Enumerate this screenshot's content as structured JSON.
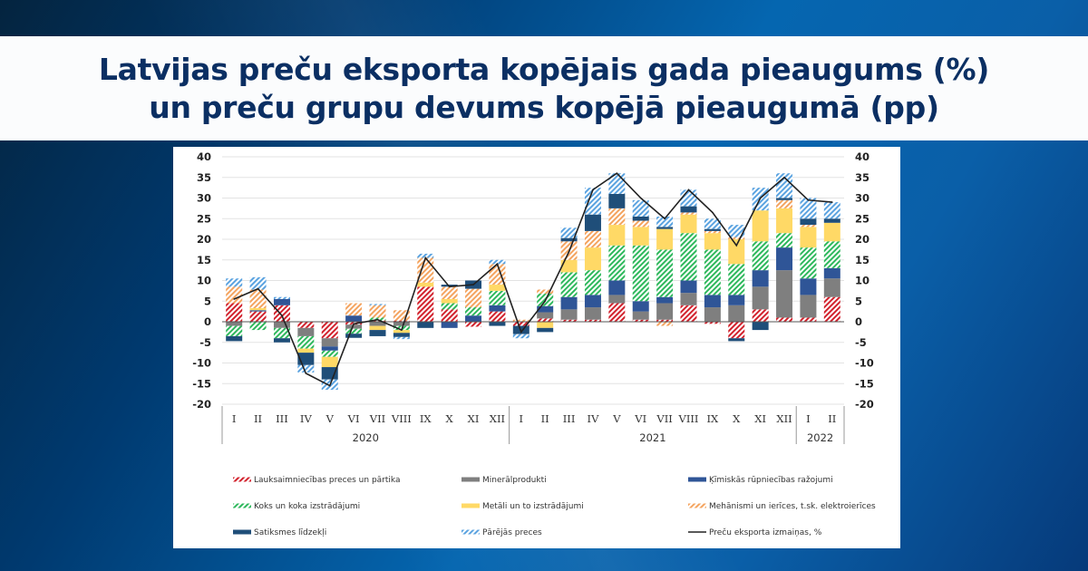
{
  "header": {
    "title_line1": "Latvijas preču eksporta kopējais gada pieaugums (%)",
    "title_line2": "un preču grupu devums kopējā pieaugumā (pp)"
  },
  "chart_data": {
    "type": "bar",
    "subtype": "stacked-bar-with-line",
    "title": "Latvijas preču eksporta kopējais gada pieaugums (%) un preču grupu devums kopējā pieaugumā (pp)",
    "xlabel": "",
    "ylabel": "",
    "ylim": [
      -20,
      40
    ],
    "yticks": [
      40,
      35,
      30,
      25,
      20,
      15,
      10,
      5,
      0,
      -5,
      -10,
      -15,
      -20
    ],
    "grid": true,
    "legend_position": "bottom",
    "categories": [
      "I",
      "II",
      "III",
      "IV",
      "V",
      "VI",
      "VII",
      "VIII",
      "IX",
      "X",
      "XI",
      "XII",
      "I",
      "II",
      "III",
      "IV",
      "V",
      "VI",
      "VII",
      "VIII",
      "IX",
      "X",
      "XI",
      "XII",
      "I",
      "II"
    ],
    "year_groups": [
      {
        "label": "2020",
        "count": 12
      },
      {
        "label": "2021",
        "count": 12
      },
      {
        "label": "2022",
        "count": 2
      }
    ],
    "series": [
      {
        "name": "Lauksaimniecības preces un pārtika",
        "color": "#d2222d",
        "pattern": "hatch",
        "values": [
          4.5,
          2.5,
          4,
          -1.5,
          -4,
          -0.7,
          0.3,
          0.3,
          8.5,
          3,
          -1.2,
          2.5,
          -1,
          0.8,
          0.5,
          0.5,
          4.5,
          0.5,
          0.5,
          4,
          -0.5,
          -4,
          3,
          1,
          1,
          6
        ]
      },
      {
        "name": "Minerālprodukti",
        "color": "#7f7f7f",
        "pattern": "solid",
        "values": [
          -1,
          0,
          -1.5,
          -2,
          -2,
          -1,
          -1,
          -1,
          0,
          0,
          0,
          0,
          0,
          1.5,
          2.5,
          3,
          2,
          2,
          4,
          3,
          3.5,
          4,
          5.5,
          11.5,
          5.5,
          4.5
        ]
      },
      {
        "name": "Ķīmiskās rūpniecības ražojumi",
        "color": "#2f5597",
        "pattern": "solid",
        "values": [
          0,
          0.3,
          1.5,
          0,
          -1,
          1.5,
          0,
          0,
          0,
          -1.5,
          1.5,
          1.5,
          0,
          1.5,
          3,
          3,
          3.5,
          2.5,
          1.5,
          3,
          3,
          2.5,
          4,
          5.5,
          4,
          2.5
        ]
      },
      {
        "name": "Koks un koka izstrādājumi",
        "color": "#2eb85c",
        "pattern": "hatch",
        "values": [
          -2.5,
          -2,
          -2.5,
          -3,
          -1.5,
          -1.2,
          0.7,
          -1,
          0,
          1.5,
          2,
          3.5,
          0,
          3,
          6,
          6,
          8.5,
          13.5,
          11.5,
          11.5,
          11,
          7.5,
          7,
          3.5,
          7.5,
          6.5
        ]
      },
      {
        "name": "Metāli un to izstrādājumi",
        "color": "#ffd966",
        "pattern": "solid",
        "values": [
          0,
          0.5,
          0,
          -1,
          -2.5,
          0,
          -1,
          -0.7,
          1,
          1,
          0,
          1.5,
          0,
          -1.5,
          3,
          5.5,
          5,
          4.5,
          5,
          4.5,
          4,
          6,
          7.5,
          6,
          5,
          4.5
        ]
      },
      {
        "name": "Mehānismi un ierīces, t.sk. elektroierīces",
        "color": "#f4a460",
        "pattern": "hatch",
        "values": [
          4,
          4.5,
          0,
          0,
          0,
          3,
          3,
          2.5,
          6,
          3,
          4.5,
          5,
          0.5,
          1,
          4.5,
          4,
          4,
          1.5,
          -1,
          0.5,
          0.5,
          0.5,
          0,
          2,
          0.5,
          0
        ]
      },
      {
        "name": "Satiksmes līdzekļi",
        "color": "#1f4e79",
        "pattern": "solid",
        "values": [
          -1.2,
          0,
          -1,
          -3,
          -3,
          -1,
          -1.5,
          -1,
          -1.5,
          0.5,
          2,
          -1,
          -2,
          -1,
          0.8,
          4,
          3.5,
          1,
          0.5,
          1.5,
          0.5,
          -0.7,
          -2,
          0.5,
          1.5,
          1
        ]
      },
      {
        "name": "Pārējās preces",
        "color": "#5ba3e0",
        "pattern": "hatch",
        "values": [
          2,
          3,
          0.5,
          -1.8,
          -2.5,
          0,
          0.3,
          -0.5,
          1,
          0,
          0,
          1,
          -1,
          0,
          2.5,
          6.5,
          5,
          4,
          2.5,
          4,
          2.5,
          3,
          5.5,
          6,
          5,
          4
        ]
      }
    ],
    "line": {
      "name": "Preču eksporta izmaiņas, %",
      "color": "#222222",
      "values": [
        5.5,
        8,
        1.5,
        -12.5,
        -15.5,
        -0.5,
        0.5,
        -2,
        15.5,
        8.5,
        9,
        14,
        -2.5,
        5,
        17,
        32,
        36,
        30,
        25,
        32,
        26.5,
        18.5,
        30,
        35,
        29.5,
        29
      ]
    }
  },
  "legend": {
    "items": [
      {
        "label": "Lauksaimniecības preces un pārtika",
        "swatch": "hatch",
        "color": "#d2222d"
      },
      {
        "label": "Minerālprodukti",
        "swatch": "solid",
        "color": "#7f7f7f"
      },
      {
        "label": "Ķīmiskās rūpniecības ražojumi",
        "swatch": "solid",
        "color": "#2f5597"
      },
      {
        "label": "Koks un koka izstrādājumi",
        "swatch": "hatch",
        "color": "#2eb85c"
      },
      {
        "label": "Metāli un to izstrādājumi",
        "swatch": "solid",
        "color": "#ffd966"
      },
      {
        "label": "Mehānismi un ierīces, t.sk. elektroierīces",
        "swatch": "hatch",
        "color": "#f4a460"
      },
      {
        "label": "Satiksmes līdzekļi",
        "swatch": "solid",
        "color": "#1f4e79"
      },
      {
        "label": "Pārējās preces",
        "swatch": "hatch",
        "color": "#5ba3e0"
      },
      {
        "label": "Preču eksporta izmaiņas, %",
        "swatch": "line",
        "color": "#222222"
      }
    ]
  }
}
